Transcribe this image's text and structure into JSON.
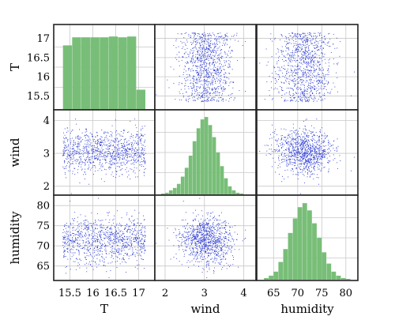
{
  "chart_data": {
    "type": "scatter-matrix",
    "variables": [
      {
        "name": "T",
        "label": "T",
        "range": [
          15.2,
          17.3
        ],
        "ticks": [
          15.5,
          16,
          16.5,
          17
        ],
        "tick_labels": [
          "15.5",
          "16",
          "16.5",
          "17"
        ]
      },
      {
        "name": "wind",
        "label": "wind",
        "range": [
          1.8,
          4.25
        ],
        "ticks": [
          2,
          3,
          4
        ],
        "tick_labels": [
          "2",
          "3",
          "4"
        ]
      },
      {
        "name": "humidity",
        "label": "humidity",
        "range": [
          62,
          82
        ],
        "ticks": [
          65,
          70,
          75,
          80
        ],
        "tick_labels": [
          "65",
          "70",
          "75",
          "80"
        ]
      }
    ],
    "distributions": [
      {
        "variable": "T",
        "kind": "uniform",
        "min": 15.35,
        "max": 17.15
      },
      {
        "variable": "wind",
        "kind": "normal",
        "mean": 3.05,
        "sd": 0.33
      },
      {
        "variable": "humidity",
        "kind": "normal",
        "mean": 71.5,
        "sd": 3.0
      }
    ],
    "histograms": [
      {
        "variable": "T",
        "bin_edges": [
          15.35,
          15.55,
          15.75,
          15.95,
          16.15,
          16.35,
          16.55,
          16.75,
          16.95,
          17.15
        ],
        "heights": [
          0.79,
          0.89,
          0.89,
          0.89,
          0.89,
          0.9,
          0.89,
          0.9,
          0.24
        ]
      },
      {
        "variable": "wind",
        "bin_edges": [
          1.9,
          2.0,
          2.1,
          2.2,
          2.3,
          2.4,
          2.5,
          2.6,
          2.7,
          2.8,
          2.9,
          3.0,
          3.1,
          3.2,
          3.3,
          3.4,
          3.5,
          3.6,
          3.7,
          3.8,
          3.9,
          4.0
        ],
        "heights": [
          0.01,
          0.02,
          0.05,
          0.08,
          0.13,
          0.22,
          0.33,
          0.48,
          0.66,
          0.82,
          0.93,
          0.96,
          0.86,
          0.71,
          0.52,
          0.35,
          0.2,
          0.1,
          0.05,
          0.02,
          0.01
        ]
      },
      {
        "variable": "humidity",
        "bin_edges": [
          63,
          64,
          65,
          66,
          67,
          68,
          69,
          70,
          71,
          72,
          73,
          74,
          75,
          76,
          77,
          78,
          79,
          80,
          81
        ],
        "heights": [
          0.02,
          0.05,
          0.1,
          0.22,
          0.38,
          0.58,
          0.76,
          0.9,
          0.95,
          0.86,
          0.7,
          0.52,
          0.34,
          0.2,
          0.1,
          0.05,
          0.02,
          0.01
        ]
      }
    ],
    "sample_size": 1000,
    "grid": true,
    "colors": {
      "scatter": "#1f2fd0",
      "histogram": "#78be78",
      "frame": "#222222",
      "grid": "#c8c8c8"
    }
  }
}
